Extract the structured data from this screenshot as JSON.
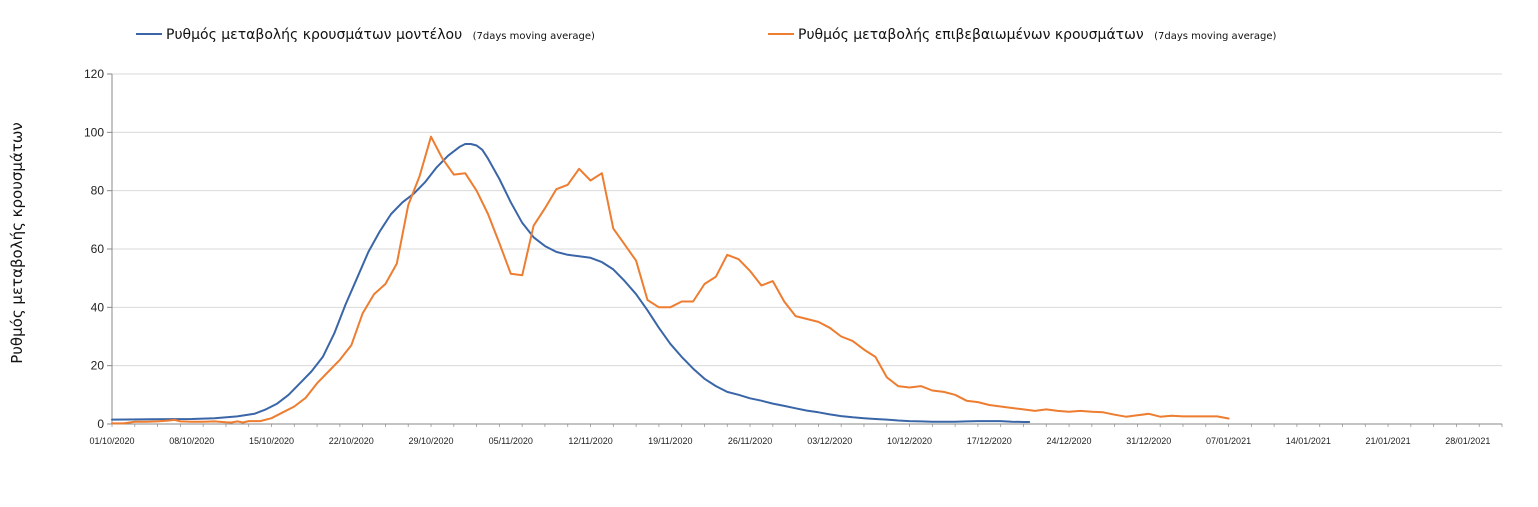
{
  "chart_data": {
    "type": "line",
    "title": "",
    "xlabel": "",
    "ylabel": "Ρυθμός μεταβολής κρουσμάτων",
    "ylim": [
      0,
      120
    ],
    "yticks": [
      0,
      20,
      40,
      60,
      80,
      100,
      120
    ],
    "grid": true,
    "legend_position": "top",
    "x_start": "01/10/2020",
    "x_end": "31/01/2021",
    "x_tick_labels": [
      "01/10/2020",
      "08/10/2020",
      "15/10/2020",
      "22/10/2020",
      "29/10/2020",
      "05/11/2020",
      "12/11/2020",
      "19/11/2020",
      "26/11/2020",
      "03/12/2020",
      "10/12/2020",
      "17/12/2020",
      "24/12/2020",
      "31/12/2020",
      "07/01/2021",
      "14/01/2021",
      "21/01/2021",
      "28/01/2021"
    ],
    "series": [
      {
        "name": "Ρυθμός μεταβολής κρουσμάτων μοντέλου",
        "suffix": "(7days moving average)",
        "color": "#3a66a8",
        "points": [
          [
            0,
            1.5
          ],
          [
            7,
            1.6
          ],
          [
            14,
            1.7
          ],
          [
            18,
            2
          ],
          [
            22,
            2.6
          ],
          [
            25,
            3.5
          ],
          [
            27,
            5
          ],
          [
            29,
            7
          ],
          [
            31,
            10
          ],
          [
            33,
            14
          ],
          [
            35,
            18
          ],
          [
            37,
            23
          ],
          [
            39,
            31
          ],
          [
            41,
            41
          ],
          [
            43,
            50
          ],
          [
            45,
            59
          ],
          [
            47,
            66
          ],
          [
            49,
            72
          ],
          [
            51,
            76
          ],
          [
            53,
            79
          ],
          [
            55,
            83
          ],
          [
            57,
            88
          ],
          [
            59,
            92
          ],
          [
            61,
            95
          ],
          [
            62,
            96
          ],
          [
            63,
            96
          ],
          [
            64,
            95.5
          ],
          [
            65,
            94
          ],
          [
            66,
            91
          ],
          [
            68,
            84
          ],
          [
            70,
            76
          ],
          [
            72,
            69
          ],
          [
            74,
            64
          ],
          [
            76,
            61
          ],
          [
            78,
            59
          ],
          [
            80,
            58
          ],
          [
            82,
            57.5
          ],
          [
            84,
            57
          ],
          [
            86,
            55.5
          ],
          [
            88,
            53
          ],
          [
            90,
            49
          ],
          [
            92,
            44.5
          ],
          [
            94,
            39
          ],
          [
            96,
            33
          ],
          [
            98,
            27.5
          ],
          [
            100,
            23
          ],
          [
            102,
            19
          ],
          [
            104,
            15.5
          ],
          [
            106,
            13
          ],
          [
            108,
            11
          ],
          [
            110,
            10
          ],
          [
            112,
            8.8
          ],
          [
            114,
            8
          ],
          [
            116,
            7
          ],
          [
            118,
            6.2
          ],
          [
            120,
            5.4
          ],
          [
            122,
            4.6
          ],
          [
            124,
            4
          ],
          [
            126,
            3.3
          ],
          [
            128,
            2.7
          ],
          [
            130,
            2.3
          ],
          [
            132,
            2
          ],
          [
            134,
            1.7
          ],
          [
            136,
            1.5
          ],
          [
            138,
            1.2
          ],
          [
            140,
            1
          ],
          [
            142,
            0.9
          ],
          [
            144,
            0.8
          ],
          [
            146,
            0.8
          ],
          [
            148,
            0.8
          ],
          [
            150,
            0.9
          ],
          [
            152,
            1
          ],
          [
            154,
            1
          ],
          [
            156,
            1
          ],
          [
            158,
            0.8
          ],
          [
            160,
            0.7
          ],
          [
            161,
            0.7
          ]
        ]
      },
      {
        "name": "Ρυθμός μεταβολής επιβεβαιωμένων κρουσμάτων",
        "suffix": "(7days moving average)",
        "color": "#ed7d31",
        "points": [
          [
            0,
            0.2
          ],
          [
            2,
            0.2
          ],
          [
            4,
            0.8
          ],
          [
            6,
            0.8
          ],
          [
            8,
            0.9
          ],
          [
            10,
            1.2
          ],
          [
            11,
            1.4
          ],
          [
            12,
            0.9
          ],
          [
            14,
            0.8
          ],
          [
            16,
            0.8
          ],
          [
            18,
            0.9
          ],
          [
            20,
            0.6
          ],
          [
            21,
            0.5
          ],
          [
            22,
            0.9
          ],
          [
            23,
            0.5
          ],
          [
            24,
            1
          ],
          [
            26,
            1
          ],
          [
            28,
            2
          ],
          [
            30,
            4
          ],
          [
            32,
            6
          ],
          [
            34,
            9
          ],
          [
            36,
            14
          ],
          [
            38,
            18
          ],
          [
            40,
            22
          ],
          [
            42,
            27
          ],
          [
            44,
            38
          ],
          [
            46,
            44.5
          ],
          [
            48,
            48
          ],
          [
            50,
            55
          ],
          [
            52,
            75
          ],
          [
            54,
            85
          ],
          [
            56,
            98.5
          ],
          [
            58,
            91
          ],
          [
            60,
            85.5
          ],
          [
            62,
            86
          ],
          [
            64,
            80
          ],
          [
            66,
            72
          ],
          [
            68,
            62
          ],
          [
            70,
            51.5
          ],
          [
            72,
            51
          ],
          [
            74,
            68
          ],
          [
            76,
            74
          ],
          [
            78,
            80.5
          ],
          [
            80,
            82
          ],
          [
            82,
            87.5
          ],
          [
            84,
            83.5
          ],
          [
            86,
            86
          ],
          [
            88,
            67
          ],
          [
            90,
            61.5
          ],
          [
            92,
            56
          ],
          [
            94,
            42.5
          ],
          [
            96,
            40
          ],
          [
            98,
            40
          ],
          [
            100,
            42
          ],
          [
            102,
            42
          ],
          [
            104,
            48
          ],
          [
            106,
            50.5
          ],
          [
            108,
            58
          ],
          [
            110,
            56.5
          ],
          [
            112,
            52.5
          ],
          [
            114,
            47.5
          ],
          [
            116,
            49
          ],
          [
            118,
            42
          ],
          [
            120,
            37
          ],
          [
            122,
            36
          ],
          [
            124,
            35
          ],
          [
            126,
            33
          ],
          [
            128,
            30
          ],
          [
            130,
            28.5
          ],
          [
            132,
            25.5
          ],
          [
            134,
            23
          ],
          [
            136,
            16
          ],
          [
            138,
            13
          ],
          [
            140,
            12.5
          ],
          [
            142,
            13
          ],
          [
            144,
            11.5
          ],
          [
            146,
            11
          ],
          [
            148,
            10
          ],
          [
            150,
            8
          ],
          [
            152,
            7.5
          ],
          [
            154,
            6.5
          ],
          [
            156,
            6
          ],
          [
            158,
            5.5
          ],
          [
            160,
            5
          ],
          [
            162,
            4.5
          ],
          [
            164,
            5
          ],
          [
            166,
            4.5
          ],
          [
            168,
            4.2
          ],
          [
            170,
            4.5
          ],
          [
            172,
            4.2
          ],
          [
            174,
            4
          ],
          [
            176,
            3.2
          ],
          [
            178,
            2.5
          ],
          [
            180,
            3
          ],
          [
            182,
            3.5
          ],
          [
            184,
            2.5
          ],
          [
            186,
            2.8
          ],
          [
            188,
            2.6
          ],
          [
            190,
            2.6
          ],
          [
            192,
            2.6
          ],
          [
            194,
            2.6
          ],
          [
            196,
            1.9
          ]
        ]
      }
    ]
  }
}
